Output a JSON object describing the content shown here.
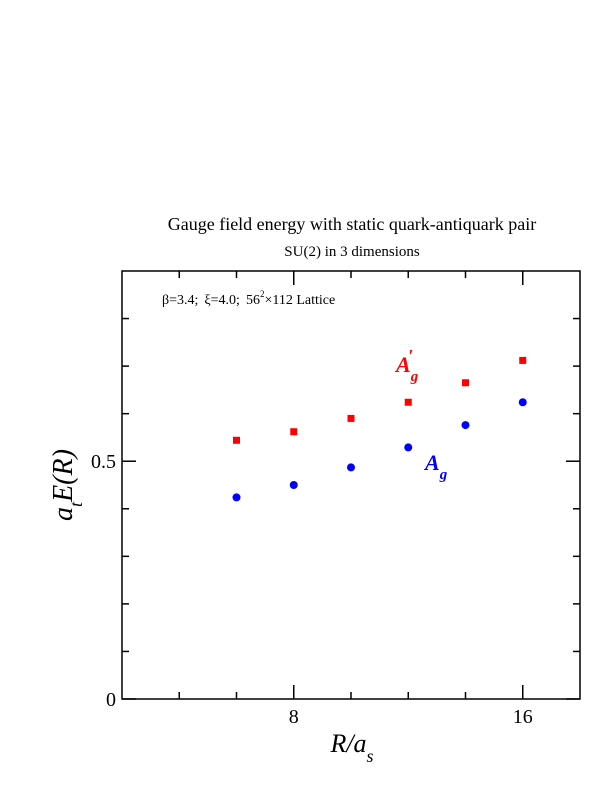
{
  "chart_data": {
    "type": "scatter",
    "title": "Gauge field energy with static quark-antiquark pair",
    "subtitle": "SU(2) in 3 dimensions",
    "annotation": {
      "beta": "β=3.4;",
      "xi": "ξ=4.0;",
      "lattice_base": "56",
      "lattice_sup": "2",
      "lattice_rest": "×112 Lattice"
    },
    "xlabel": {
      "main": "R/a",
      "sub": "s"
    },
    "ylabel": {
      "pre": "a",
      "sub": "t",
      "post": "E(R)"
    },
    "xlim": [
      2,
      18
    ],
    "ylim": [
      0,
      0.9
    ],
    "x_ticks_major": [
      8,
      16
    ],
    "x_ticks_minor": [
      4,
      6,
      10,
      12,
      14
    ],
    "y_ticks_major": [
      0,
      0.5
    ],
    "y_ticks_minor": [
      0.1,
      0.2,
      0.3,
      0.4,
      0.6,
      0.7,
      0.8
    ],
    "x_tick_labels": [
      "8",
      "16"
    ],
    "y_tick_labels": [
      "0",
      "0.5"
    ],
    "series": [
      {
        "name": "A′g",
        "label_main": "A",
        "label_prime": "′",
        "label_sub": "g",
        "marker": "square",
        "color": "#ff0000",
        "x": [
          6,
          8,
          10,
          12,
          14,
          16
        ],
        "y": [
          0.544,
          0.562,
          0.59,
          0.624,
          0.665,
          0.712
        ]
      },
      {
        "name": "Ag",
        "label_main": "A",
        "label_sub": "g",
        "marker": "circle",
        "color": "#0000ff",
        "x": [
          6,
          8,
          10,
          12,
          14,
          16
        ],
        "y": [
          0.424,
          0.45,
          0.487,
          0.529,
          0.576,
          0.624
        ]
      }
    ]
  }
}
